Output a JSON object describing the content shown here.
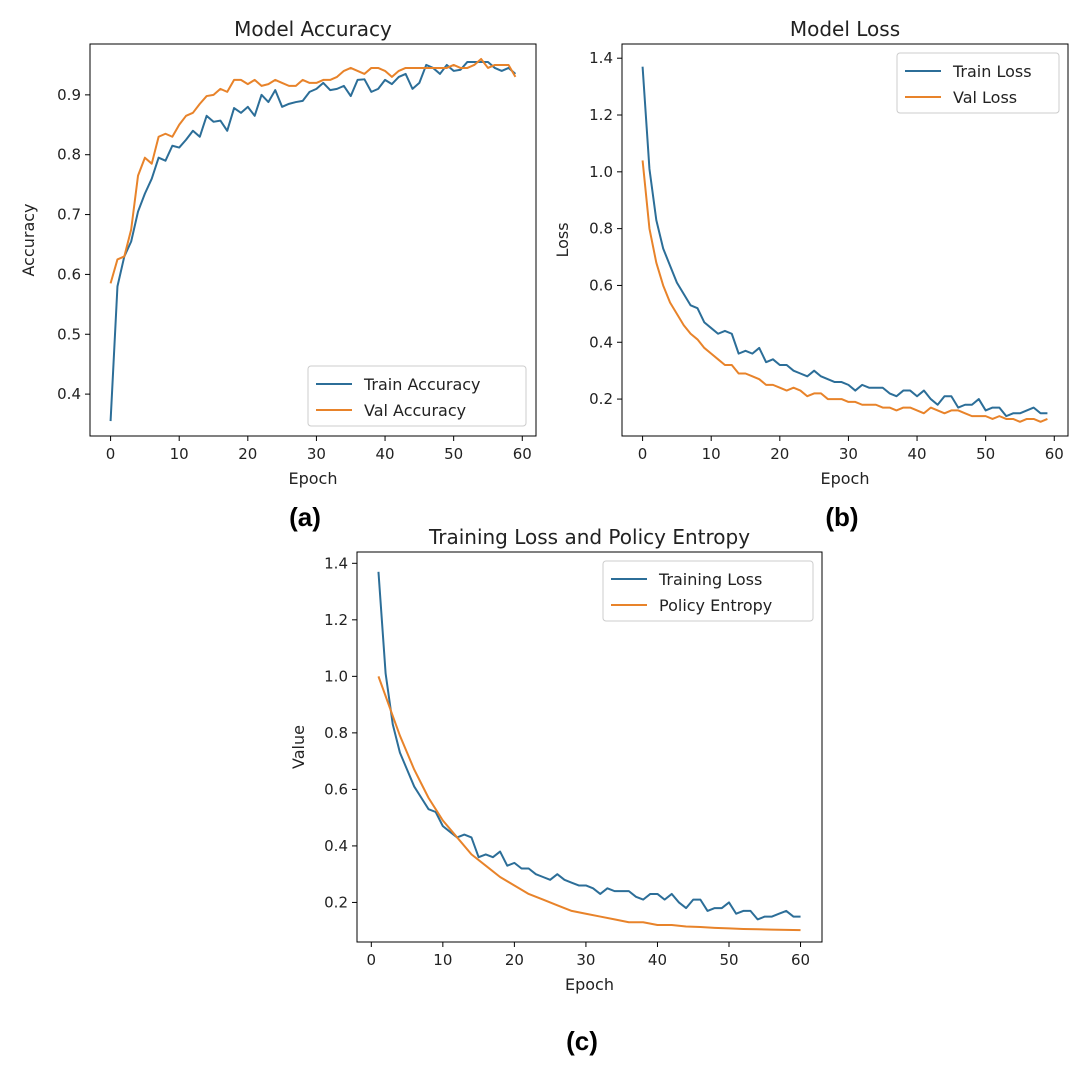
{
  "chart_data": [
    {
      "id": "acc",
      "panel_label": "(a)",
      "type": "line",
      "title": "Model Accuracy",
      "xlabel": "Epoch",
      "ylabel": "Accuracy",
      "xlim": [
        -3,
        62
      ],
      "ylim": [
        0.33,
        0.985
      ],
      "xticks": [
        0,
        10,
        20,
        30,
        40,
        50,
        60
      ],
      "yticks": [
        0.4,
        0.5,
        0.6,
        0.7,
        0.8,
        0.9
      ],
      "ytick_labels": [
        "0.4",
        "0.5",
        "0.6",
        "0.7",
        "0.8",
        "0.9"
      ],
      "legend_position": "lower-right",
      "grid": false,
      "series": [
        {
          "name": "Train Accuracy",
          "color": "#2c6e98",
          "x": [
            0,
            1,
            2,
            3,
            4,
            5,
            6,
            7,
            8,
            9,
            10,
            11,
            12,
            13,
            14,
            15,
            16,
            17,
            18,
            19,
            20,
            21,
            22,
            23,
            24,
            25,
            26,
            27,
            28,
            29,
            30,
            31,
            32,
            33,
            34,
            35,
            36,
            37,
            38,
            39,
            40,
            41,
            42,
            43,
            44,
            45,
            46,
            47,
            48,
            49,
            50,
            51,
            52,
            53,
            54,
            55,
            56,
            57,
            58,
            59
          ],
          "y": [
            0.355,
            0.58,
            0.63,
            0.655,
            0.705,
            0.735,
            0.76,
            0.795,
            0.79,
            0.815,
            0.812,
            0.825,
            0.84,
            0.83,
            0.865,
            0.855,
            0.857,
            0.84,
            0.878,
            0.87,
            0.88,
            0.865,
            0.9,
            0.888,
            0.908,
            0.88,
            0.885,
            0.888,
            0.89,
            0.905,
            0.91,
            0.92,
            0.908,
            0.91,
            0.915,
            0.898,
            0.925,
            0.926,
            0.905,
            0.91,
            0.925,
            0.918,
            0.93,
            0.935,
            0.91,
            0.92,
            0.95,
            0.945,
            0.935,
            0.95,
            0.94,
            0.942,
            0.955,
            0.955,
            0.955,
            0.955,
            0.945,
            0.94,
            0.945,
            0.935
          ]
        },
        {
          "name": "Val Accuracy",
          "color": "#e8832a",
          "x": [
            0,
            1,
            2,
            3,
            4,
            5,
            6,
            7,
            8,
            9,
            10,
            11,
            12,
            13,
            14,
            15,
            16,
            17,
            18,
            19,
            20,
            21,
            22,
            23,
            24,
            25,
            26,
            27,
            28,
            29,
            30,
            31,
            32,
            33,
            34,
            35,
            36,
            37,
            38,
            39,
            40,
            41,
            42,
            43,
            44,
            45,
            46,
            47,
            48,
            49,
            50,
            51,
            52,
            53,
            54,
            55,
            56,
            57,
            58,
            59
          ],
          "y": [
            0.585,
            0.625,
            0.63,
            0.675,
            0.765,
            0.795,
            0.785,
            0.83,
            0.835,
            0.83,
            0.85,
            0.865,
            0.87,
            0.885,
            0.898,
            0.9,
            0.91,
            0.905,
            0.925,
            0.925,
            0.918,
            0.925,
            0.915,
            0.918,
            0.925,
            0.92,
            0.915,
            0.915,
            0.925,
            0.92,
            0.92,
            0.925,
            0.925,
            0.93,
            0.94,
            0.945,
            0.94,
            0.935,
            0.945,
            0.945,
            0.94,
            0.93,
            0.94,
            0.945,
            0.945,
            0.945,
            0.945,
            0.945,
            0.945,
            0.945,
            0.95,
            0.945,
            0.945,
            0.95,
            0.96,
            0.945,
            0.95,
            0.95,
            0.95,
            0.93
          ]
        }
      ]
    },
    {
      "id": "loss",
      "panel_label": "(b)",
      "type": "line",
      "title": "Model Loss",
      "xlabel": "Epoch",
      "ylabel": "Loss",
      "xlim": [
        -3,
        62
      ],
      "ylim": [
        0.07,
        1.45
      ],
      "xticks": [
        0,
        10,
        20,
        30,
        40,
        50,
        60
      ],
      "yticks": [
        0.2,
        0.4,
        0.6,
        0.8,
        1.0,
        1.2,
        1.4
      ],
      "ytick_labels": [
        "0.2",
        "0.4",
        "0.6",
        "0.8",
        "1.0",
        "1.2",
        "1.4"
      ],
      "legend_position": "upper-right",
      "grid": false,
      "series": [
        {
          "name": "Train Loss",
          "color": "#2c6e98",
          "x": [
            0,
            1,
            2,
            3,
            4,
            5,
            6,
            7,
            8,
            9,
            10,
            11,
            12,
            13,
            14,
            15,
            16,
            17,
            18,
            19,
            20,
            21,
            22,
            23,
            24,
            25,
            26,
            27,
            28,
            29,
            30,
            31,
            32,
            33,
            34,
            35,
            36,
            37,
            38,
            39,
            40,
            41,
            42,
            43,
            44,
            45,
            46,
            47,
            48,
            49,
            50,
            51,
            52,
            53,
            54,
            55,
            56,
            57,
            58,
            59
          ],
          "y": [
            1.37,
            1.01,
            0.83,
            0.73,
            0.67,
            0.61,
            0.57,
            0.53,
            0.52,
            0.47,
            0.45,
            0.43,
            0.44,
            0.43,
            0.36,
            0.37,
            0.36,
            0.38,
            0.33,
            0.34,
            0.32,
            0.32,
            0.3,
            0.29,
            0.28,
            0.3,
            0.28,
            0.27,
            0.26,
            0.26,
            0.25,
            0.23,
            0.25,
            0.24,
            0.24,
            0.24,
            0.22,
            0.21,
            0.23,
            0.23,
            0.21,
            0.23,
            0.2,
            0.18,
            0.21,
            0.21,
            0.17,
            0.18,
            0.18,
            0.2,
            0.16,
            0.17,
            0.17,
            0.14,
            0.15,
            0.15,
            0.16,
            0.17,
            0.15,
            0.15
          ]
        },
        {
          "name": "Val Loss",
          "color": "#e8832a",
          "x": [
            0,
            1,
            2,
            3,
            4,
            5,
            6,
            7,
            8,
            9,
            10,
            11,
            12,
            13,
            14,
            15,
            16,
            17,
            18,
            19,
            20,
            21,
            22,
            23,
            24,
            25,
            26,
            27,
            28,
            29,
            30,
            31,
            32,
            33,
            34,
            35,
            36,
            37,
            38,
            39,
            40,
            41,
            42,
            43,
            44,
            45,
            46,
            47,
            48,
            49,
            50,
            51,
            52,
            53,
            54,
            55,
            56,
            57,
            58,
            59
          ],
          "y": [
            1.04,
            0.8,
            0.68,
            0.6,
            0.54,
            0.5,
            0.46,
            0.43,
            0.41,
            0.38,
            0.36,
            0.34,
            0.32,
            0.32,
            0.29,
            0.29,
            0.28,
            0.27,
            0.25,
            0.25,
            0.24,
            0.23,
            0.24,
            0.23,
            0.21,
            0.22,
            0.22,
            0.2,
            0.2,
            0.2,
            0.19,
            0.19,
            0.18,
            0.18,
            0.18,
            0.17,
            0.17,
            0.16,
            0.17,
            0.17,
            0.16,
            0.15,
            0.17,
            0.16,
            0.15,
            0.16,
            0.16,
            0.15,
            0.14,
            0.14,
            0.14,
            0.13,
            0.14,
            0.13,
            0.13,
            0.12,
            0.13,
            0.13,
            0.12,
            0.13
          ]
        }
      ]
    },
    {
      "id": "entropy",
      "panel_label": "(c)",
      "type": "line",
      "title": "Training Loss and Policy Entropy",
      "xlabel": "Epoch",
      "ylabel": "Value",
      "xlim": [
        -2,
        63
      ],
      "ylim": [
        0.06,
        1.44
      ],
      "xticks": [
        0,
        10,
        20,
        30,
        40,
        50,
        60
      ],
      "yticks": [
        0.2,
        0.4,
        0.6,
        0.8,
        1.0,
        1.2,
        1.4
      ],
      "ytick_labels": [
        "0.2",
        "0.4",
        "0.6",
        "0.8",
        "1.0",
        "1.2",
        "1.4"
      ],
      "legend_position": "upper-right",
      "grid": false,
      "series": [
        {
          "name": "Training Loss",
          "color": "#2c6e98",
          "x": [
            1,
            2,
            3,
            4,
            5,
            6,
            7,
            8,
            9,
            10,
            11,
            12,
            13,
            14,
            15,
            16,
            17,
            18,
            19,
            20,
            21,
            22,
            23,
            24,
            25,
            26,
            27,
            28,
            29,
            30,
            31,
            32,
            33,
            34,
            35,
            36,
            37,
            38,
            39,
            40,
            41,
            42,
            43,
            44,
            45,
            46,
            47,
            48,
            49,
            50,
            51,
            52,
            53,
            54,
            55,
            56,
            57,
            58,
            59,
            60
          ],
          "y": [
            1.37,
            1.01,
            0.83,
            0.73,
            0.67,
            0.61,
            0.57,
            0.53,
            0.52,
            0.47,
            0.45,
            0.43,
            0.44,
            0.43,
            0.36,
            0.37,
            0.36,
            0.38,
            0.33,
            0.34,
            0.32,
            0.32,
            0.3,
            0.29,
            0.28,
            0.3,
            0.28,
            0.27,
            0.26,
            0.26,
            0.25,
            0.23,
            0.25,
            0.24,
            0.24,
            0.24,
            0.22,
            0.21,
            0.23,
            0.23,
            0.21,
            0.23,
            0.2,
            0.18,
            0.21,
            0.21,
            0.17,
            0.18,
            0.18,
            0.2,
            0.16,
            0.17,
            0.17,
            0.14,
            0.15,
            0.15,
            0.16,
            0.17,
            0.15,
            0.15
          ]
        },
        {
          "name": "Policy Entropy",
          "color": "#e8832a",
          "x": [
            1,
            2,
            3,
            4,
            5,
            6,
            7,
            8,
            9,
            10,
            12,
            14,
            16,
            18,
            20,
            22,
            24,
            26,
            28,
            30,
            32,
            34,
            36,
            38,
            40,
            42,
            44,
            46,
            48,
            50,
            52,
            54,
            56,
            58,
            60
          ],
          "y": [
            1.0,
            0.93,
            0.86,
            0.79,
            0.73,
            0.67,
            0.62,
            0.57,
            0.53,
            0.49,
            0.43,
            0.37,
            0.33,
            0.29,
            0.26,
            0.23,
            0.21,
            0.19,
            0.17,
            0.16,
            0.15,
            0.14,
            0.13,
            0.13,
            0.12,
            0.12,
            0.115,
            0.113,
            0.11,
            0.108,
            0.106,
            0.105,
            0.104,
            0.103,
            0.102
          ]
        }
      ]
    }
  ]
}
